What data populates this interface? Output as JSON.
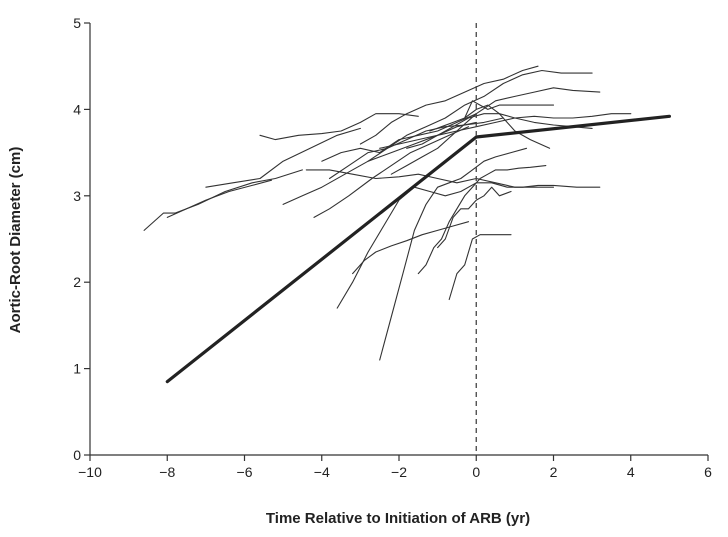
{
  "chart_data": {
    "type": "line",
    "xlabel": "Time Relative to Initiation of ARB (yr)",
    "ylabel": "Aortic-Root Diameter (cm)",
    "xlim": [
      -10,
      6
    ],
    "ylim": [
      0,
      5
    ],
    "xticks": [
      -10,
      -8,
      -6,
      -4,
      -2,
      0,
      2,
      4,
      6
    ],
    "yticks": [
      0,
      1,
      2,
      3,
      4,
      5
    ],
    "xtick_labels": [
      "−10",
      "−8",
      "−6",
      "−4",
      "−2",
      "0",
      "2",
      "4",
      "6"
    ],
    "ytick_labels": [
      "0",
      "1",
      "2",
      "3",
      "4",
      "5"
    ],
    "grid": false,
    "reference_line": {
      "x": 0,
      "style": "dashed"
    },
    "trend": [
      [
        -8,
        0.85
      ],
      [
        0,
        3.68
      ],
      [
        5,
        3.92
      ]
    ],
    "series": [
      {
        "x": [
          -8.6,
          -8.1,
          -7.8,
          -7.2,
          -6.5,
          -5.8,
          -5.2,
          -4.5
        ],
        "y": [
          2.6,
          2.8,
          2.8,
          2.9,
          3.05,
          3.15,
          3.2,
          3.3
        ]
      },
      {
        "x": [
          -8.0,
          -7.5,
          -7.0,
          -6.4,
          -5.8,
          -5.3
        ],
        "y": [
          2.75,
          2.85,
          2.95,
          3.05,
          3.12,
          3.18
        ]
      },
      {
        "x": [
          -7.0,
          -6.3,
          -5.6,
          -5.0,
          -4.3,
          -3.6,
          -3.0
        ],
        "y": [
          3.1,
          3.15,
          3.2,
          3.4,
          3.55,
          3.7,
          3.78
        ]
      },
      {
        "x": [
          -5.6,
          -5.2,
          -4.6,
          -4.0,
          -3.5,
          -3.0,
          -2.6,
          -2.0,
          -1.5
        ],
        "y": [
          3.7,
          3.65,
          3.7,
          3.72,
          3.75,
          3.85,
          3.95,
          3.95,
          3.92
        ]
      },
      {
        "x": [
          -5.0,
          -4.5,
          -4.0,
          -3.4,
          -2.8,
          -2.2,
          -1.6,
          -1.0,
          -0.5,
          0.0
        ],
        "y": [
          2.9,
          3.0,
          3.1,
          3.25,
          3.4,
          3.5,
          3.6,
          3.7,
          3.8,
          3.85
        ]
      },
      {
        "x": [
          -4.2,
          -3.8,
          -3.3,
          -2.7,
          -2.2,
          -1.7,
          -1.2,
          -0.7,
          -0.2
        ],
        "y": [
          2.75,
          2.85,
          3.0,
          3.2,
          3.35,
          3.5,
          3.6,
          3.7,
          3.8
        ]
      },
      {
        "x": [
          -4.0,
          -3.5,
          -3.0,
          -2.5,
          -2.0,
          -1.5,
          -1.0,
          -0.5,
          0.0
        ],
        "y": [
          3.4,
          3.5,
          3.55,
          3.5,
          3.65,
          3.7,
          3.75,
          3.85,
          3.95
        ]
      },
      {
        "x": [
          -3.8,
          -3.3,
          -2.8,
          -2.3,
          -1.8,
          -1.3,
          -0.8,
          -0.3,
          0.2,
          0.7
        ],
        "y": [
          3.2,
          3.35,
          3.5,
          3.55,
          3.65,
          3.75,
          3.8,
          3.82,
          3.85,
          3.9
        ]
      },
      {
        "x": [
          -3.0,
          -2.6,
          -2.2,
          -1.8,
          -1.3,
          -0.8,
          -0.3,
          0.2,
          0.7,
          1.2,
          1.6
        ],
        "y": [
          3.6,
          3.7,
          3.85,
          3.95,
          4.05,
          4.1,
          4.2,
          4.3,
          4.35,
          4.45,
          4.5
        ]
      },
      {
        "x": [
          -2.8,
          -2.3,
          -1.8,
          -1.3,
          -0.8,
          -0.3,
          0.2,
          0.7,
          1.2,
          1.7,
          2.2,
          2.7,
          3.0
        ],
        "y": [
          3.4,
          3.55,
          3.7,
          3.8,
          3.9,
          4.05,
          4.15,
          4.3,
          4.4,
          4.45,
          4.42,
          4.42,
          4.42
        ]
      },
      {
        "x": [
          -2.5,
          -2.0,
          -1.5,
          -1.0,
          -0.5,
          0.0,
          0.5,
          1.0,
          1.5,
          2.0,
          2.5,
          3.0,
          3.5,
          4.0
        ],
        "y": [
          3.55,
          3.6,
          3.65,
          3.7,
          3.75,
          3.8,
          3.85,
          3.9,
          3.92,
          3.9,
          3.9,
          3.92,
          3.95,
          3.95
        ]
      },
      {
        "x": [
          -2.2,
          -1.8,
          -1.4,
          -1.0,
          -0.5,
          0.0,
          0.5,
          1.0,
          1.5,
          2.0,
          2.5,
          3.2
        ],
        "y": [
          3.25,
          3.35,
          3.45,
          3.55,
          3.75,
          3.95,
          4.1,
          4.15,
          4.2,
          4.25,
          4.22,
          4.2
        ]
      },
      {
        "x": [
          -1.8,
          -1.4,
          -1.0,
          -0.6,
          -0.2,
          0.2,
          0.6,
          1.0,
          1.5,
          2.0,
          2.5,
          3.0
        ],
        "y": [
          3.55,
          3.6,
          3.7,
          3.8,
          3.9,
          3.95,
          3.95,
          3.9,
          3.85,
          3.82,
          3.8,
          3.78
        ]
      },
      {
        "x": [
          -4.4,
          -3.8,
          -3.2,
          -2.6,
          -2.0,
          -1.5,
          -1.0,
          -0.5,
          0.0,
          0.5,
          1.0,
          1.6,
          2.0
        ],
        "y": [
          3.3,
          3.3,
          3.25,
          3.2,
          3.22,
          3.25,
          3.2,
          3.15,
          3.2,
          3.15,
          3.1,
          3.1,
          3.1
        ]
      },
      {
        "x": [
          -3.6,
          -3.2,
          -2.8,
          -2.4,
          -2.0,
          -1.6,
          -1.2,
          -0.8,
          -0.4,
          0.0,
          0.4,
          0.8,
          1.2,
          1.6,
          2.0,
          2.6,
          3.2
        ],
        "y": [
          1.7,
          2.0,
          2.35,
          2.65,
          2.95,
          3.1,
          3.05,
          3.0,
          3.05,
          3.15,
          3.15,
          3.1,
          3.1,
          3.12,
          3.12,
          3.1,
          3.1
        ]
      },
      {
        "x": [
          -2.5,
          -2.2,
          -1.9,
          -1.6,
          -1.3,
          -1.0,
          -0.7,
          -0.4,
          -0.1,
          0.2,
          0.5,
          0.9,
          1.3
        ],
        "y": [
          1.1,
          1.6,
          2.1,
          2.6,
          2.9,
          3.1,
          3.15,
          3.2,
          3.3,
          3.4,
          3.45,
          3.5,
          3.55
        ]
      },
      {
        "x": [
          -3.2,
          -2.9,
          -2.6,
          -2.2,
          -1.8,
          -1.4,
          -1.0,
          -0.6,
          -0.2
        ],
        "y": [
          2.1,
          2.25,
          2.35,
          2.42,
          2.48,
          2.55,
          2.6,
          2.65,
          2.7
        ]
      },
      {
        "x": [
          -1.5,
          -1.3,
          -1.1,
          -0.9,
          -0.7,
          -0.5,
          -0.3,
          -0.1,
          0.1,
          0.3,
          0.5,
          0.8,
          1.1,
          1.4,
          1.8
        ],
        "y": [
          2.1,
          2.2,
          2.4,
          2.5,
          2.7,
          2.85,
          3.0,
          3.1,
          3.2,
          3.25,
          3.3,
          3.3,
          3.32,
          3.33,
          3.35
        ]
      },
      {
        "x": [
          -1.0,
          -0.8,
          -0.6,
          -0.4,
          -0.2,
          0.0,
          0.2,
          0.4,
          0.6,
          0.9
        ],
        "y": [
          2.4,
          2.5,
          2.75,
          2.85,
          2.85,
          2.95,
          3.0,
          3.1,
          3.0,
          3.05
        ]
      },
      {
        "x": [
          -0.7,
          -0.5,
          -0.3,
          -0.1,
          0.1,
          0.3,
          0.6,
          0.9
        ],
        "y": [
          1.8,
          2.1,
          2.2,
          2.5,
          2.55,
          2.55,
          2.55,
          2.55
        ]
      },
      {
        "x": [
          -0.3,
          -0.1,
          0.1,
          0.3,
          0.6,
          1.0,
          1.5,
          2.0
        ],
        "y": [
          3.9,
          4.1,
          4.05,
          4.0,
          4.05,
          4.05,
          4.05,
          4.05
        ]
      },
      {
        "x": [
          -1.2,
          -0.9,
          -0.6,
          -0.3,
          0.0,
          0.3,
          0.6,
          1.0,
          1.4,
          1.9
        ],
        "y": [
          3.75,
          3.8,
          3.85,
          3.9,
          4.0,
          4.05,
          3.95,
          3.75,
          3.65,
          3.55
        ]
      }
    ]
  }
}
